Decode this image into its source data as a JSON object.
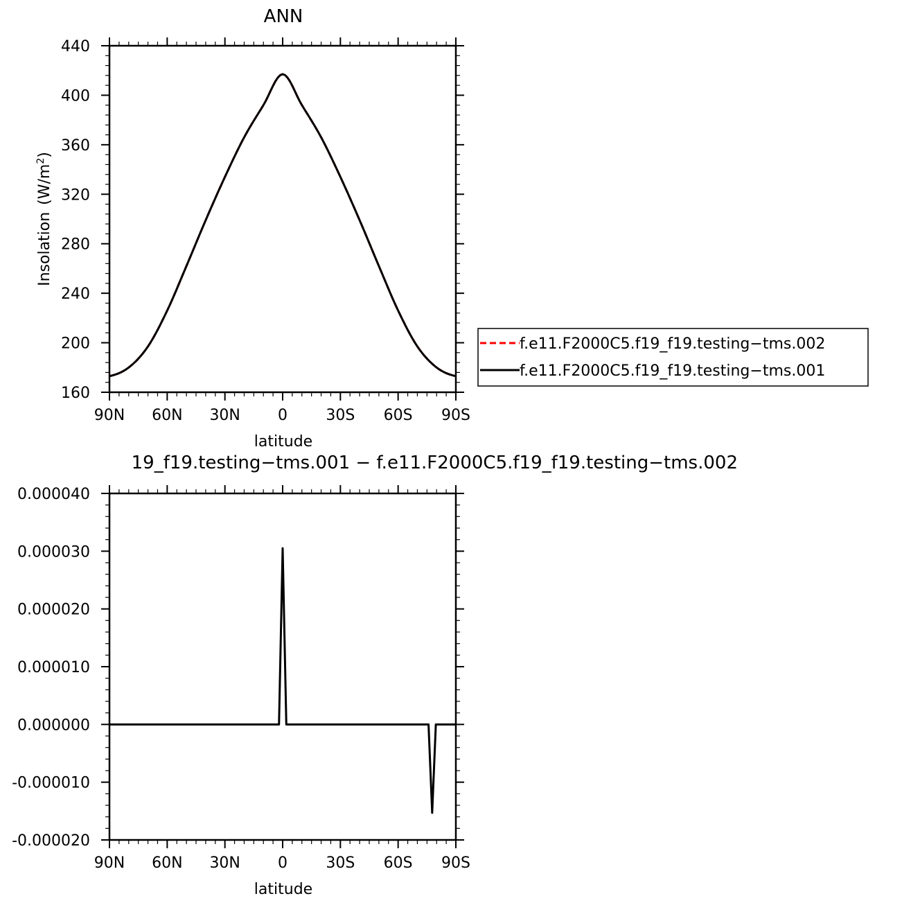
{
  "chart_data": [
    {
      "type": "line",
      "title": "ANN",
      "xlabel": "latitude",
      "ylabel": "Insolation",
      "ylabel_units": "(W/m",
      "ylabel_units_sup": "2",
      "ylabel_units_close": ")",
      "xlim": [
        90,
        -90
      ],
      "ylim": [
        160,
        440
      ],
      "x_ticks": [
        {
          "value": 90,
          "label": "90N"
        },
        {
          "value": 60,
          "label": "60N"
        },
        {
          "value": 30,
          "label": "30N"
        },
        {
          "value": 0,
          "label": "0"
        },
        {
          "value": -30,
          "label": "30S"
        },
        {
          "value": -60,
          "label": "60S"
        },
        {
          "value": -90,
          "label": "90S"
        }
      ],
      "y_ticks": [
        {
          "value": 160,
          "label": "160"
        },
        {
          "value": 200,
          "label": "200"
        },
        {
          "value": 240,
          "label": "240"
        },
        {
          "value": 280,
          "label": "280"
        },
        {
          "value": 320,
          "label": "320"
        },
        {
          "value": 360,
          "label": "360"
        },
        {
          "value": 400,
          "label": "400"
        },
        {
          "value": 440,
          "label": "440"
        }
      ],
      "x": [
        90,
        80,
        70,
        60,
        50,
        40,
        30,
        20,
        10,
        0,
        -10,
        -20,
        -30,
        -40,
        -50,
        -60,
        -70,
        -80,
        -90
      ],
      "series": [
        {
          "name": "f.e11.F2000C5.f19_f19.testing−tms.002",
          "color": "#ff0000",
          "dash": "dashed",
          "values": [
            173,
            180,
            197,
            226,
            262,
            299,
            334,
            366,
            392,
            417,
            392,
            366,
            334,
            299,
            262,
            226,
            197,
            180,
            173
          ]
        },
        {
          "name": "f.e11.F2000C5.f19_f19.testing−tms.001",
          "color": "#000000",
          "dash": "solid",
          "values": [
            173,
            180,
            197,
            226,
            262,
            299,
            334,
            366,
            392,
            417,
            392,
            366,
            334,
            299,
            262,
            226,
            197,
            180,
            173
          ]
        }
      ],
      "legend": "right",
      "grid": false
    },
    {
      "type": "line",
      "title": "19_f19.testing−tms.001 − f.e11.F2000C5.f19_f19.testing−tms.002",
      "xlabel": "latitude",
      "ylabel": "",
      "xlim": [
        90,
        -90
      ],
      "ylim": [
        -2e-05,
        4e-05
      ],
      "x_ticks": [
        {
          "value": 90,
          "label": "90N"
        },
        {
          "value": 60,
          "label": "60N"
        },
        {
          "value": 30,
          "label": "30N"
        },
        {
          "value": 0,
          "label": "0"
        },
        {
          "value": -30,
          "label": "30S"
        },
        {
          "value": -60,
          "label": "60S"
        },
        {
          "value": -90,
          "label": "90S"
        }
      ],
      "y_ticks": [
        {
          "value": -2e-05,
          "label": "-0.000020"
        },
        {
          "value": -1e-05,
          "label": "-0.000010"
        },
        {
          "value": 0,
          "label": "0.000000"
        },
        {
          "value": 1e-05,
          "label": "0.000010"
        },
        {
          "value": 2e-05,
          "label": "0.000020"
        },
        {
          "value": 3e-05,
          "label": "0.000030"
        },
        {
          "value": 4e-05,
          "label": "0.000040"
        }
      ],
      "x": [
        90,
        3.8,
        1.9,
        0,
        -1.9,
        -3.8,
        -74,
        -75.8,
        -77.7,
        -79.6,
        -90
      ],
      "series": [
        {
          "color": "#000000",
          "dash": "solid",
          "values": [
            0,
            0,
            0,
            3.05e-05,
            0,
            0,
            0,
            0,
            -1.53e-05,
            0,
            0
          ]
        }
      ],
      "grid": false
    }
  ]
}
